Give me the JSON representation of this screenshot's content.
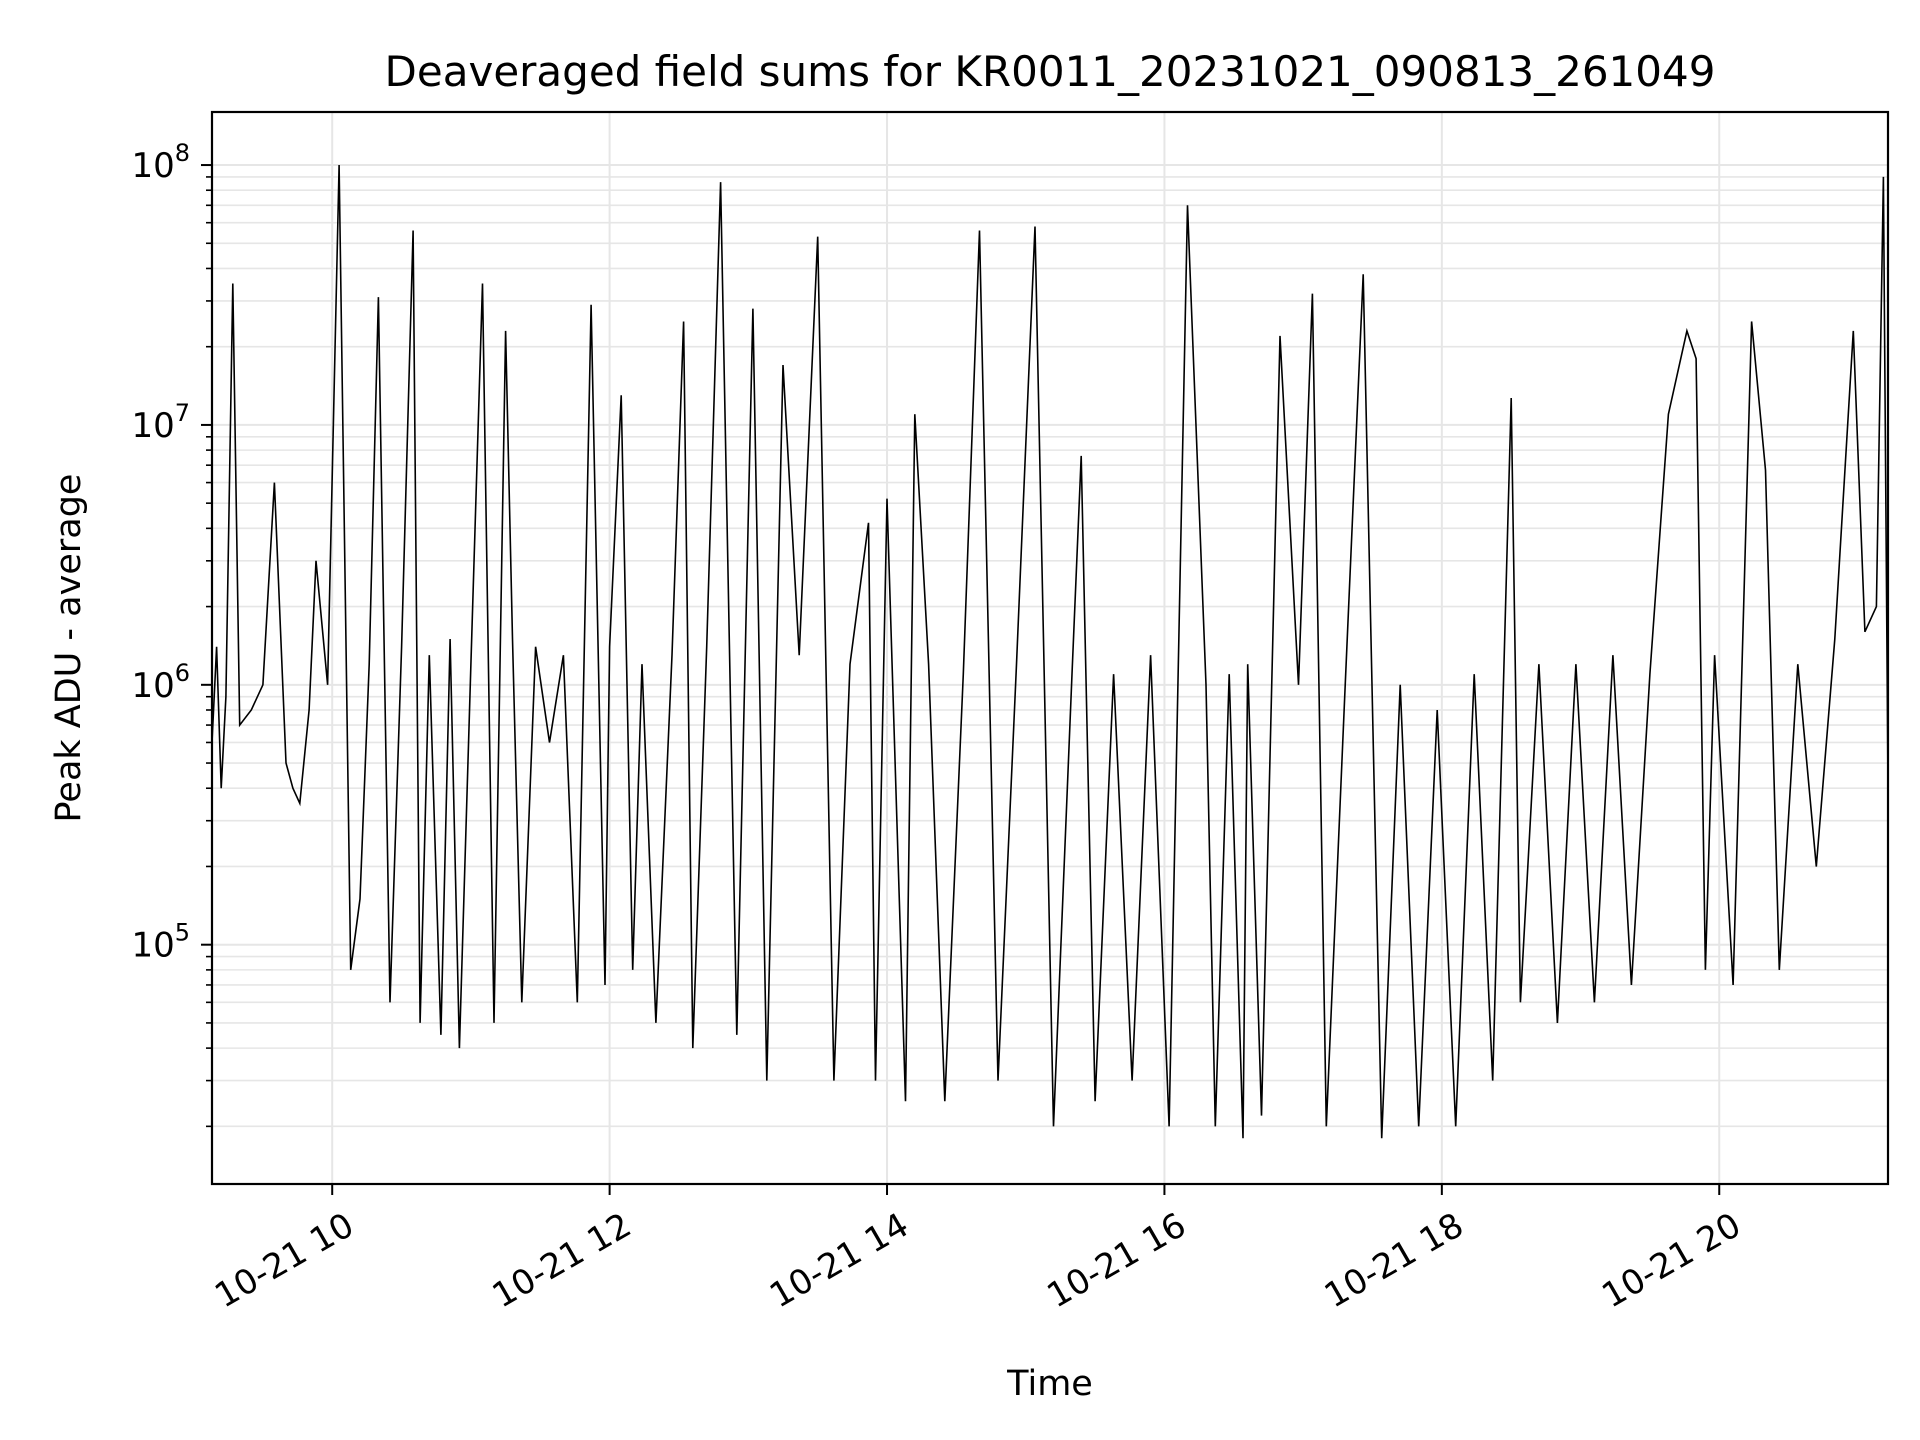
{
  "chart_data": {
    "type": "line",
    "title": "Deaveraged field sums for KR0011_20231021_090813_261049",
    "xlabel": "Time",
    "ylabel": "Peak ADU - average",
    "yscale": "log",
    "ylim": [
      12000,
      160000000
    ],
    "xlim": [
      "2023-10-21 09:08",
      "2023-10-21 21:13"
    ],
    "grid": true,
    "line_color": "#000000",
    "grid_color": "#e6e6e6",
    "x_ticks": [
      {
        "t": "2023-10-21 10:00",
        "label": "10-21 10"
      },
      {
        "t": "2023-10-21 12:00",
        "label": "10-21 12"
      },
      {
        "t": "2023-10-21 14:00",
        "label": "10-21 14"
      },
      {
        "t": "2023-10-21 16:00",
        "label": "10-21 16"
      },
      {
        "t": "2023-10-21 18:00",
        "label": "10-21 18"
      },
      {
        "t": "2023-10-21 20:00",
        "label": "10-21 20"
      }
    ],
    "y_ticks": [
      {
        "value": 100000,
        "base": "10",
        "exp": "5"
      },
      {
        "value": 1000000,
        "base": "10",
        "exp": "6"
      },
      {
        "value": 10000000,
        "base": "10",
        "exp": "7"
      },
      {
        "value": 100000000,
        "base": "10",
        "exp": "8"
      }
    ],
    "series": [
      {
        "x": [
          "2023-10-21 09:08",
          "2023-10-21 09:10",
          "2023-10-21 09:12",
          "2023-10-21 09:14",
          "2023-10-21 09:17",
          "2023-10-21 09:20",
          "2023-10-21 09:25",
          "2023-10-21 09:30",
          "2023-10-21 09:35",
          "2023-10-21 09:40",
          "2023-10-21 09:43",
          "2023-10-21 09:46",
          "2023-10-21 09:50",
          "2023-10-21 09:53",
          "2023-10-21 09:58",
          "2023-10-21 10:03",
          "2023-10-21 10:08",
          "2023-10-21 10:12",
          "2023-10-21 10:16",
          "2023-10-21 10:20",
          "2023-10-21 10:25",
          "2023-10-21 10:30",
          "2023-10-21 10:35",
          "2023-10-21 10:38",
          "2023-10-21 10:42",
          "2023-10-21 10:47",
          "2023-10-21 10:51",
          "2023-10-21 10:55",
          "2023-10-21 11:00",
          "2023-10-21 11:05",
          "2023-10-21 11:10",
          "2023-10-21 11:15",
          "2023-10-21 11:18",
          "2023-10-21 11:22",
          "2023-10-21 11:28",
          "2023-10-21 11:34",
          "2023-10-21 11:40",
          "2023-10-21 11:46",
          "2023-10-21 11:52",
          "2023-10-21 11:58",
          "2023-10-21 12:00",
          "2023-10-21 12:05",
          "2023-10-21 12:10",
          "2023-10-21 12:14",
          "2023-10-21 12:20",
          "2023-10-21 12:27",
          "2023-10-21 12:32",
          "2023-10-21 12:36",
          "2023-10-21 12:42",
          "2023-10-21 12:48",
          "2023-10-21 12:55",
          "2023-10-21 13:02",
          "2023-10-21 13:08",
          "2023-10-21 13:15",
          "2023-10-21 13:22",
          "2023-10-21 13:30",
          "2023-10-21 13:37",
          "2023-10-21 13:44",
          "2023-10-21 13:52",
          "2023-10-21 13:55",
          "2023-10-21 14:00",
          "2023-10-21 14:08",
          "2023-10-21 14:12",
          "2023-10-21 14:18",
          "2023-10-21 14:25",
          "2023-10-21 14:33",
          "2023-10-21 14:40",
          "2023-10-21 14:48",
          "2023-10-21 14:56",
          "2023-10-21 15:04",
          "2023-10-21 15:12",
          "2023-10-21 15:20",
          "2023-10-21 15:24",
          "2023-10-21 15:30",
          "2023-10-21 15:38",
          "2023-10-21 15:46",
          "2023-10-21 15:54",
          "2023-10-21 16:02",
          "2023-10-21 16:10",
          "2023-10-21 16:18",
          "2023-10-21 16:22",
          "2023-10-21 16:28",
          "2023-10-21 16:34",
          "2023-10-21 16:36",
          "2023-10-21 16:42",
          "2023-10-21 16:50",
          "2023-10-21 16:58",
          "2023-10-21 17:04",
          "2023-10-21 17:10",
          "2023-10-21 17:18",
          "2023-10-21 17:26",
          "2023-10-21 17:34",
          "2023-10-21 17:42",
          "2023-10-21 17:50",
          "2023-10-21 17:58",
          "2023-10-21 18:06",
          "2023-10-21 18:14",
          "2023-10-21 18:22",
          "2023-10-21 18:30",
          "2023-10-21 18:34",
          "2023-10-21 18:42",
          "2023-10-21 18:50",
          "2023-10-21 18:58",
          "2023-10-21 19:06",
          "2023-10-21 19:14",
          "2023-10-21 19:22",
          "2023-10-21 19:30",
          "2023-10-21 19:38",
          "2023-10-21 19:46",
          "2023-10-21 19:50",
          "2023-10-21 19:54",
          "2023-10-21 19:58",
          "2023-10-21 20:06",
          "2023-10-21 20:14",
          "2023-10-21 20:20",
          "2023-10-21 20:26",
          "2023-10-21 20:34",
          "2023-10-21 20:42",
          "2023-10-21 20:50",
          "2023-10-21 20:58",
          "2023-10-21 21:03",
          "2023-10-21 21:08",
          "2023-10-21 21:11",
          "2023-10-21 21:13"
        ],
        "y": [
          600000,
          1400000,
          400000,
          900000,
          35000000,
          700000,
          800000,
          1000000,
          6000000,
          500000,
          400000,
          350000,
          800000,
          3000000,
          1000000,
          100000000,
          80000,
          150000,
          1200000,
          31000000,
          60000,
          1400000,
          56000000,
          50000,
          1300000,
          45000,
          1500000,
          40000,
          1200000,
          35000000,
          50000,
          23000000,
          1500000,
          60000,
          1400000,
          600000,
          1300000,
          60000,
          29000000,
          70000,
          1400000,
          13000000,
          80000,
          1200000,
          50000,
          1300000,
          25000000,
          40000,
          1400000,
          86000000,
          45000,
          28000000,
          30000,
          17000000,
          1300000,
          53000000,
          30000,
          1200000,
          4200000,
          30000,
          5200000,
          25000,
          11000000,
          1200000,
          25000,
          1100000,
          56000000,
          30000,
          1200000,
          58000000,
          20000,
          1100000,
          7600000,
          25000,
          1100000,
          30000,
          1300000,
          20000,
          70000000,
          1000000,
          20000,
          1100000,
          18000,
          1200000,
          22000,
          22000000,
          1000000,
          32000000,
          20000,
          900000,
          38000000,
          18000,
          1000000,
          20000,
          800000,
          20000,
          1100000,
          30000,
          12700000,
          60000,
          1200000,
          50000,
          1200000,
          60000,
          1300000,
          70000,
          1100000,
          11000000,
          23000000,
          18000000,
          80000,
          1300000,
          70000,
          25000000,
          6700000,
          80000,
          1200000,
          200000,
          1500000,
          23000000,
          1600000,
          2000000,
          90000000,
          400000
        ]
      }
    ]
  }
}
